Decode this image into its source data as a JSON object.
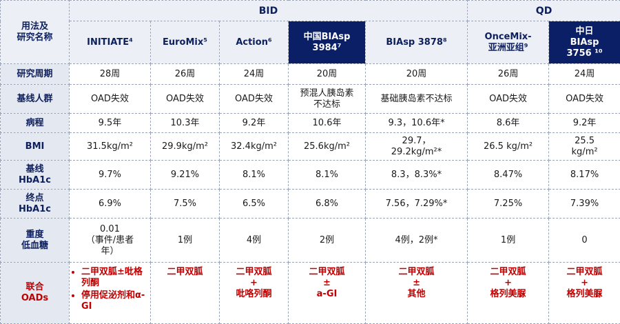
{
  "table": {
    "corner": [
      "用法及",
      "研究名称"
    ],
    "groups": [
      {
        "label": "BID",
        "span": 5
      },
      {
        "label": "QD",
        "span": 2
      }
    ],
    "studies": [
      [
        "INITIATE⁴"
      ],
      [
        "EuroMix⁵"
      ],
      [
        "Action⁶"
      ],
      [
        "中国BIAsp",
        "3984⁷"
      ],
      [
        "BIAsp 3878⁸"
      ],
      [
        "OnceMix-",
        "亚洲亚组⁹"
      ],
      [
        "中日",
        "BIAsp",
        "3756 ¹⁰"
      ]
    ],
    "rows": [
      {
        "label": [
          "研究周期"
        ],
        "cells": [
          [
            "28周"
          ],
          [
            "26周"
          ],
          [
            "24周"
          ],
          [
            "20周"
          ],
          [
            "20周"
          ],
          [
            "26周"
          ],
          [
            "24周"
          ]
        ]
      },
      {
        "label": [
          "基线人群"
        ],
        "cells": [
          [
            "OAD失效"
          ],
          [
            "OAD失效"
          ],
          [
            "OAD失效"
          ],
          [
            "预混人胰岛素",
            "不达标"
          ],
          [
            "基础胰岛素不达标"
          ],
          [
            "OAD失效"
          ],
          [
            "OAD失效"
          ]
        ]
      },
      {
        "label": [
          "病程"
        ],
        "cells": [
          [
            "9.5年"
          ],
          [
            "10.3年"
          ],
          [
            "9.2年"
          ],
          [
            "10.6年"
          ],
          [
            "9.3，10.6年*"
          ],
          [
            "8.6年"
          ],
          [
            "9.2年"
          ]
        ]
      },
      {
        "label": [
          "BMI"
        ],
        "cells": [
          [
            "31.5kg/m²"
          ],
          [
            "29.9kg/m²"
          ],
          [
            "32.4kg/m²"
          ],
          [
            "25.6kg/m²"
          ],
          [
            "29.7，",
            "29.2kg/m²*"
          ],
          [
            "26.5 kg/m²"
          ],
          [
            "25.5",
            "kg/m²"
          ]
        ]
      },
      {
        "label": [
          "基线",
          "HbA1c"
        ],
        "cells": [
          [
            "9.7%"
          ],
          [
            "9.21%"
          ],
          [
            "8.1%"
          ],
          [
            "8.1%"
          ],
          [
            "8.3，8.3%*"
          ],
          [
            "8.47%"
          ],
          [
            "8.17%"
          ]
        ]
      },
      {
        "label": [
          "终点",
          "HbA1c"
        ],
        "cells": [
          [
            "6.9%"
          ],
          [
            "7.5%"
          ],
          [
            "6.5%"
          ],
          [
            "6.8%"
          ],
          [
            "7.56，7.29%*"
          ],
          [
            "7.25%"
          ],
          [
            "7.39%"
          ]
        ]
      },
      {
        "label": [
          "重度",
          "低血糖"
        ],
        "cells": [
          [
            "0.01",
            "（事件/患者",
            "年）"
          ],
          [
            "1例"
          ],
          [
            "4例"
          ],
          [
            "2例"
          ],
          [
            "4例，2例*"
          ],
          [
            "1例"
          ],
          [
            "0"
          ]
        ]
      },
      {
        "label": [
          "联合",
          "OADs"
        ],
        "cells": [
          [
            "二甲双胍±吡格列酮",
            "停用促泌剂和α-GI"
          ],
          [
            "二甲双胍"
          ],
          [
            "二甲双胍",
            "+",
            "吡咯列酮"
          ],
          [
            "二甲双胍",
            "±",
            "a-GI"
          ],
          [
            "二甲双胍",
            "±",
            "其他"
          ],
          [
            "二甲双胍",
            "+",
            "格列美脲"
          ],
          [
            "二甲双胍",
            "+",
            "格列美脲"
          ]
        ]
      }
    ]
  }
}
